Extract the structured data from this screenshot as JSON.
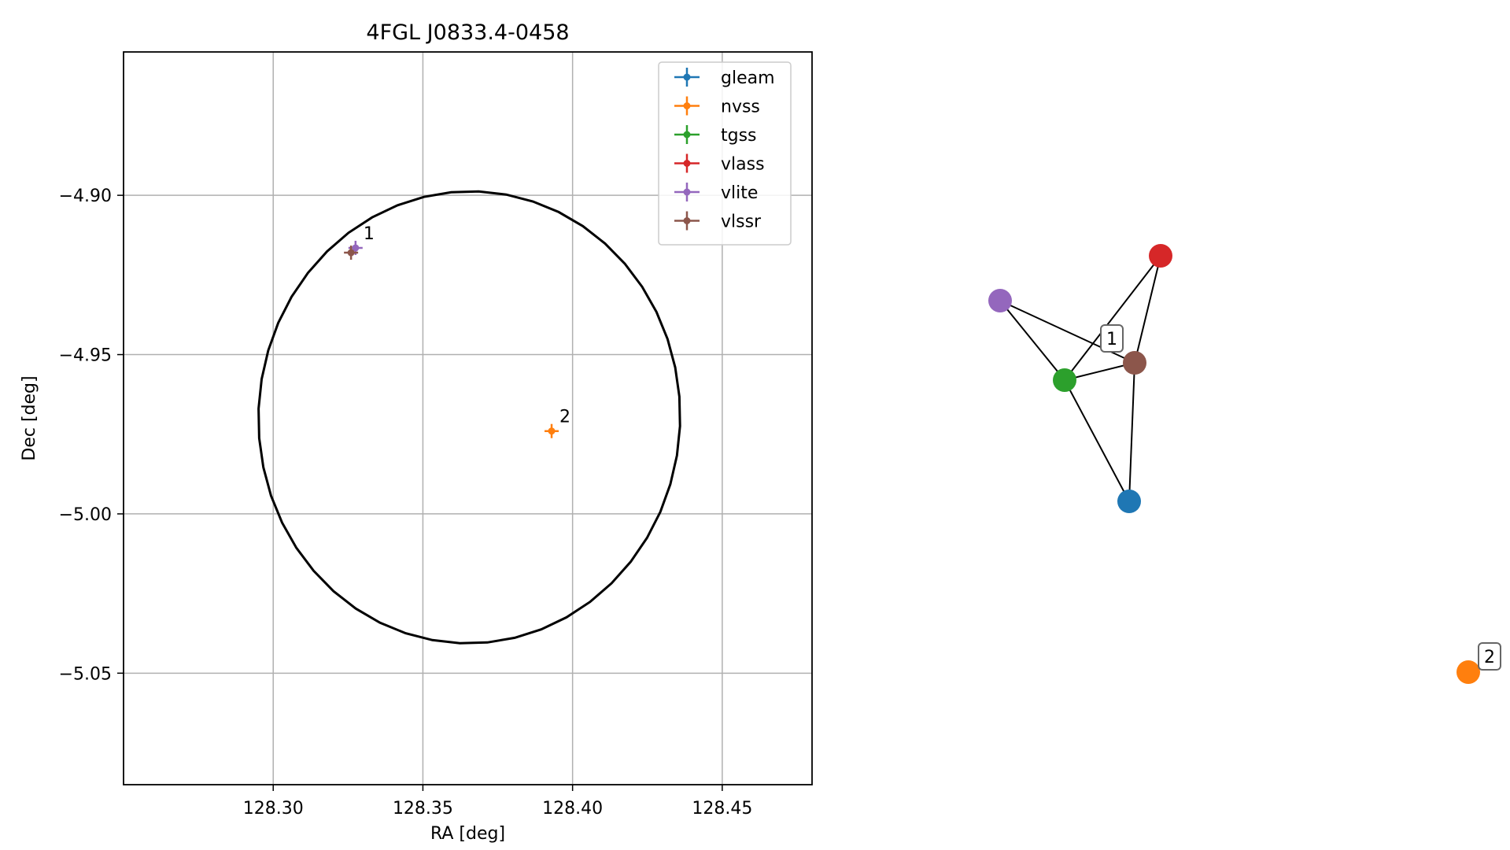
{
  "chart_data": [
    {
      "type": "scatter",
      "title": "4FGL J0833.4-0458",
      "xlabel": "RA [deg]",
      "ylabel": "Dec [deg]",
      "xlim": [
        128.25,
        128.48
      ],
      "ylim": [
        -5.085,
        -4.855
      ],
      "xticks": [
        128.3,
        128.35,
        128.4,
        128.45
      ],
      "xtick_labels": [
        "128.30",
        "128.35",
        "128.40",
        "128.45"
      ],
      "yticks": [
        -4.9,
        -4.95,
        -5.0,
        -5.05
      ],
      "ytick_labels": [
        "−4.90",
        "−4.95",
        "−5.00",
        "−5.05"
      ],
      "grid": true,
      "legend_position": "top-right",
      "ellipse": {
        "center": [
          128.3655,
          -4.9697
        ],
        "semi_ra": 0.0705,
        "semi_dec": 0.0709,
        "color": "#000000"
      },
      "series": [
        {
          "name": "gleam",
          "color": "#1f77b4",
          "points": []
        },
        {
          "name": "nvss",
          "color": "#ff7f0e",
          "points": [
            {
              "ra": 128.393,
              "dec": -4.974,
              "label": "2"
            }
          ]
        },
        {
          "name": "tgss",
          "color": "#2ca02c",
          "points": []
        },
        {
          "name": "vlass",
          "color": "#d62728",
          "points": []
        },
        {
          "name": "vlite",
          "color": "#9467bd",
          "points": [
            {
              "ra": 128.3275,
              "dec": -4.9165,
              "label": "1"
            }
          ]
        },
        {
          "name": "vlssr",
          "color": "#8c564b",
          "points": [
            {
              "ra": 128.326,
              "dec": -4.918
            }
          ]
        }
      ]
    },
    {
      "type": "network",
      "nodes": [
        {
          "id": "vlass",
          "color": "#d62728"
        },
        {
          "id": "vlite",
          "color": "#9467bd"
        },
        {
          "id": "vlssr",
          "color": "#8c564b",
          "label": "1"
        },
        {
          "id": "tgss",
          "color": "#2ca02c"
        },
        {
          "id": "gleam",
          "color": "#1f77b4"
        },
        {
          "id": "nvss",
          "color": "#ff7f0e",
          "label": "2"
        }
      ],
      "edges": [
        [
          "vlite",
          "tgss"
        ],
        [
          "vlite",
          "vlssr"
        ],
        [
          "tgss",
          "vlssr"
        ],
        [
          "tgss",
          "vlass"
        ],
        [
          "vlass",
          "vlssr"
        ],
        [
          "tgss",
          "gleam"
        ],
        [
          "gleam",
          "vlssr"
        ]
      ]
    }
  ]
}
